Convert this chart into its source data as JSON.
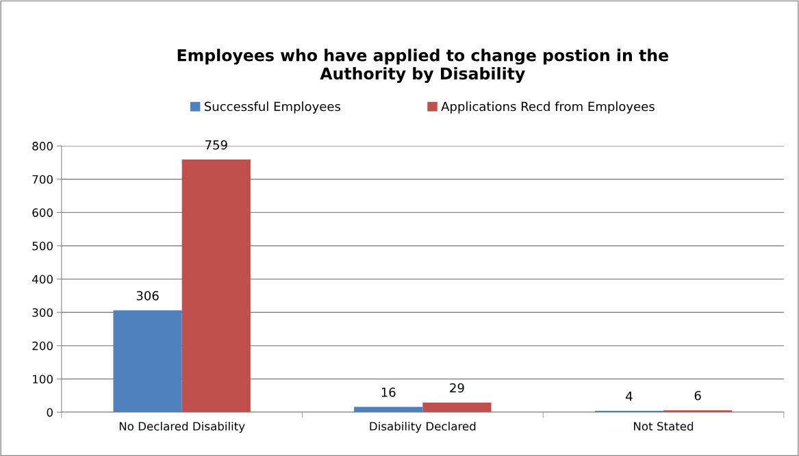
{
  "chart_data": {
    "type": "bar",
    "title": "Employees who have applied to change postion in the\nAuthority by Disability",
    "categories": [
      "No Declared Disability",
      "Disability Declared",
      "Not Stated"
    ],
    "series": [
      {
        "name": "Successful Employees",
        "color": "#4f81bd",
        "values": [
          306,
          16,
          4
        ]
      },
      {
        "name": "Applications Recd from Employees",
        "color": "#c0504d",
        "values": [
          759,
          29,
          6
        ]
      }
    ],
    "ylim": [
      0,
      800
    ],
    "yticks": [
      0,
      100,
      200,
      300,
      400,
      500,
      600,
      700,
      800
    ],
    "grid": "y",
    "legend": "top",
    "data_labels": true
  }
}
